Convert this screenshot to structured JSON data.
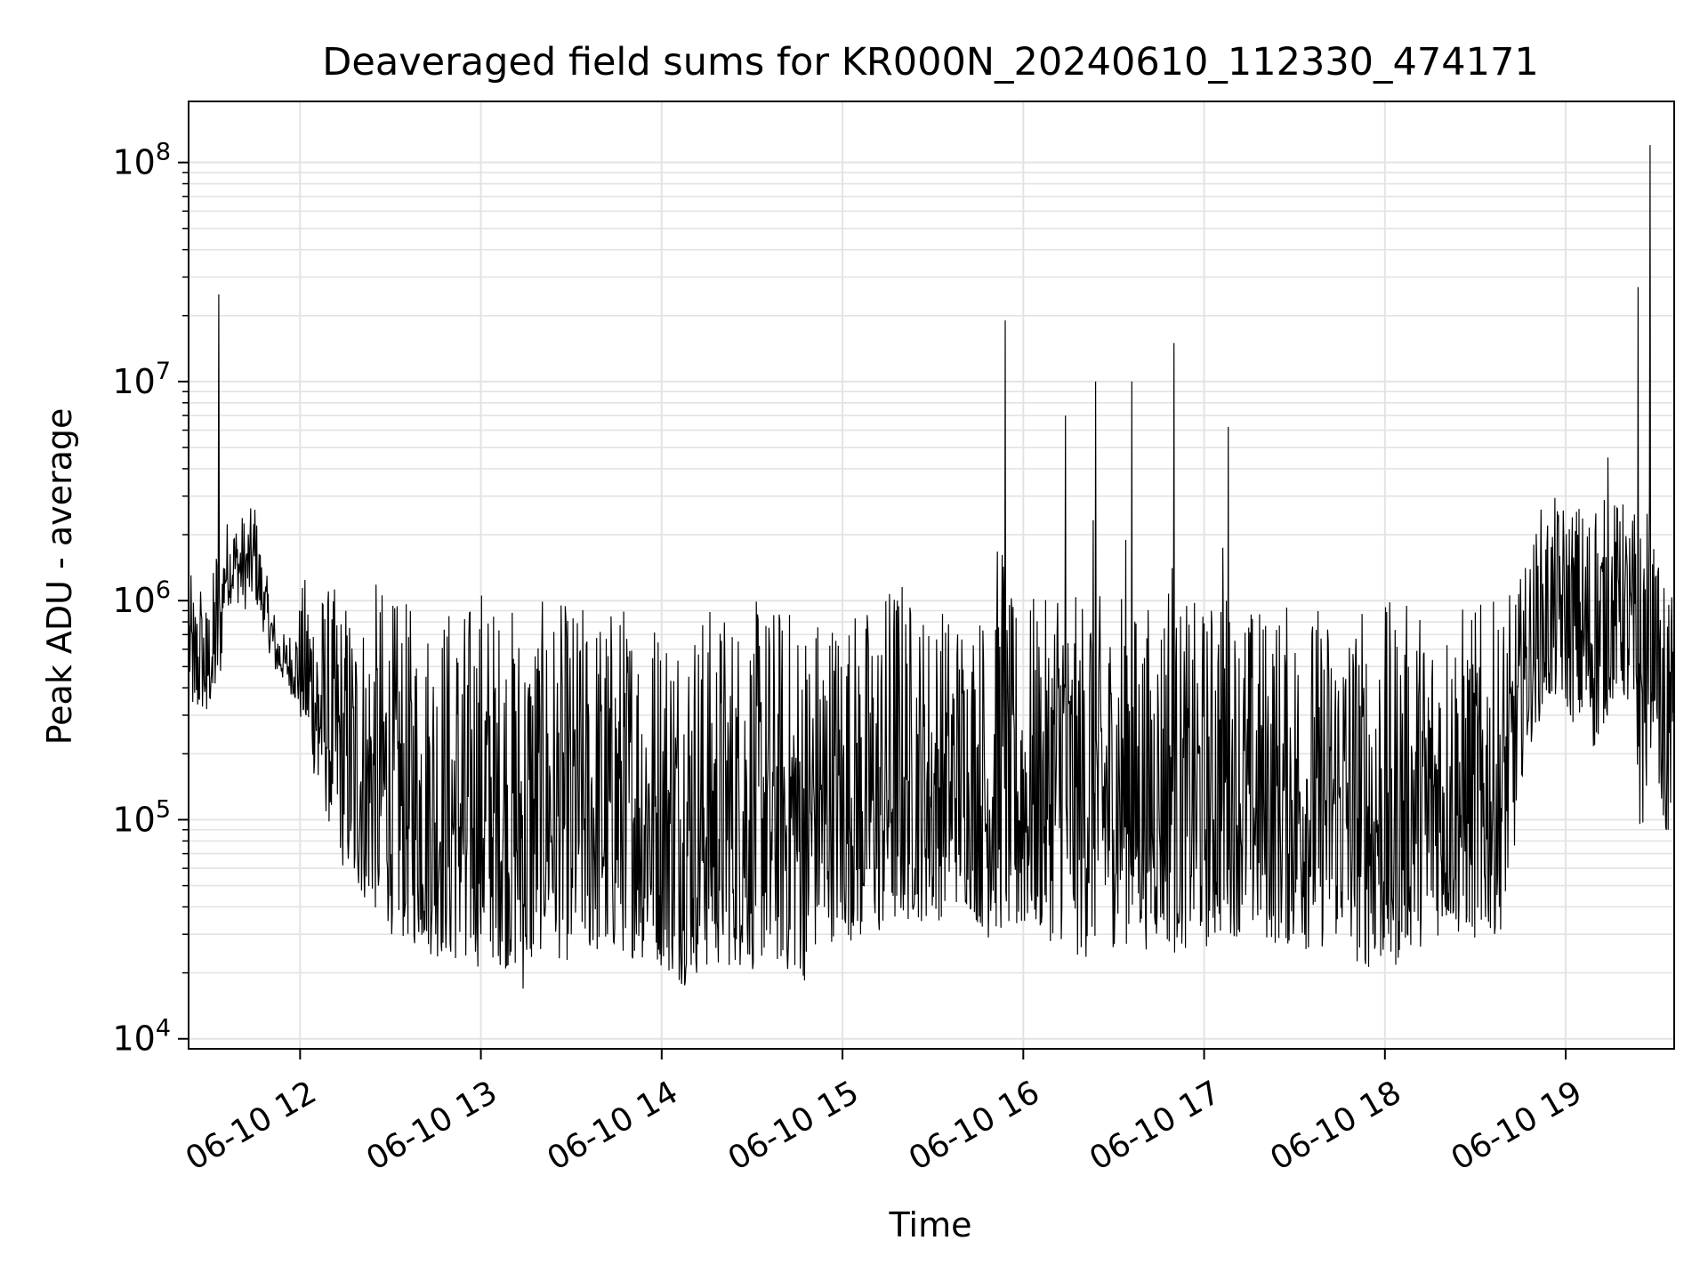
{
  "chart_data": {
    "type": "line",
    "title": "Deaveraged field sums for KR000N_20240610_112330_474171",
    "xlabel": "Time",
    "ylabel": "Peak ADU - average",
    "x_tick_labels": [
      "06-10 12",
      "06-10 13",
      "06-10 14",
      "06-10 15",
      "06-10 16",
      "06-10 17",
      "06-10 18",
      "06-10 19"
    ],
    "x_ticks": [
      "2024-06-10 12:00",
      "2024-06-10 13:00",
      "2024-06-10 14:00",
      "2024-06-10 15:00",
      "2024-06-10 16:00",
      "2024-06-10 17:00",
      "2024-06-10 18:00",
      "2024-06-10 19:00"
    ],
    "xlim": [
      "2024-06-10 11:23",
      "2024-06-10 19:36"
    ],
    "y_scale": "log",
    "ylim": [
      9000,
      190000000
    ],
    "y_tick_labels": [
      {
        "base": "10",
        "exp": "4",
        "value": 10000
      },
      {
        "base": "10",
        "exp": "5",
        "value": 100000
      },
      {
        "base": "10",
        "exp": "6",
        "value": 1000000
      },
      {
        "base": "10",
        "exp": "7",
        "value": 10000000
      },
      {
        "base": "10",
        "exp": "8",
        "value": 100000000
      }
    ],
    "grid": true,
    "line_color": "#000000",
    "grid_color": "#e3e3e3",
    "series": [
      {
        "x": [
          "2024-06-10 11:23",
          "2024-06-10 11:25",
          "2024-06-10 11:27",
          "2024-06-10 11:29",
          "2024-06-10 11:31",
          "2024-06-10 11:33",
          "2024-06-10 11:35",
          "2024-06-10 11:38",
          "2024-06-10 11:42",
          "2024-06-10 11:45",
          "2024-06-10 11:48",
          "2024-06-10 11:52",
          "2024-06-10 11:55",
          "2024-06-10 11:58",
          "2024-06-10 12:02",
          "2024-06-10 12:06",
          "2024-06-10 12:10",
          "2024-06-10 12:14",
          "2024-06-10 12:18",
          "2024-06-10 12:22",
          "2024-06-10 12:26",
          "2024-06-10 12:30",
          "2024-06-10 12:35",
          "2024-06-10 12:40",
          "2024-06-10 12:45",
          "2024-06-10 12:50",
          "2024-06-10 12:55",
          "2024-06-10 13:00",
          "2024-06-10 13:05",
          "2024-06-10 13:10",
          "2024-06-10 13:15",
          "2024-06-10 13:20",
          "2024-06-10 13:25",
          "2024-06-10 13:30",
          "2024-06-10 13:36",
          "2024-06-10 13:42",
          "2024-06-10 13:48",
          "2024-06-10 13:54",
          "2024-06-10 14:00",
          "2024-06-10 14:06",
          "2024-06-10 14:12",
          "2024-06-10 14:18",
          "2024-06-10 14:24",
          "2024-06-10 14:30",
          "2024-06-10 14:36",
          "2024-06-10 14:42",
          "2024-06-10 14:48",
          "2024-06-10 14:54",
          "2024-06-10 15:00",
          "2024-06-10 15:06",
          "2024-06-10 15:12",
          "2024-06-10 15:18",
          "2024-06-10 15:24",
          "2024-06-10 15:30",
          "2024-06-10 15:36",
          "2024-06-10 15:42",
          "2024-06-10 15:48",
          "2024-06-10 15:54",
          "2024-06-10 15:58",
          "2024-06-10 16:02",
          "2024-06-10 16:08",
          "2024-06-10 16:14",
          "2024-06-10 16:19",
          "2024-06-10 16:24",
          "2024-06-10 16:30",
          "2024-06-10 16:36",
          "2024-06-10 16:42",
          "2024-06-10 16:45",
          "2024-06-10 16:50",
          "2024-06-10 16:56",
          "2024-06-10 17:02",
          "2024-06-10 17:08",
          "2024-06-10 17:14",
          "2024-06-10 17:20",
          "2024-06-10 17:26",
          "2024-06-10 17:32",
          "2024-06-10 17:38",
          "2024-06-10 17:44",
          "2024-06-10 17:50",
          "2024-06-10 17:56",
          "2024-06-10 18:02",
          "2024-06-10 18:08",
          "2024-06-10 18:14",
          "2024-06-10 18:20",
          "2024-06-10 18:26",
          "2024-06-10 18:32",
          "2024-06-10 18:38",
          "2024-06-10 18:42",
          "2024-06-10 18:46",
          "2024-06-10 18:52",
          "2024-06-10 18:58",
          "2024-06-10 19:04",
          "2024-06-10 19:10",
          "2024-06-10 19:14",
          "2024-06-10 19:18",
          "2024-06-10 19:22",
          "2024-06-10 19:24",
          "2024-06-10 19:26",
          "2024-06-10 19:28",
          "2024-06-10 19:30",
          "2024-06-10 19:32",
          "2024-06-10 19:34",
          "2024-06-10 19:36"
        ],
        "values": [
          600000,
          380000,
          1100000,
          320000,
          420000,
          25000000,
          1400000,
          1900000,
          1500000,
          2600000,
          1100000,
          550000,
          520000,
          450000,
          300000,
          160000,
          120000,
          90000,
          60000,
          55000,
          50000,
          45000,
          42000,
          35000,
          30000,
          25000,
          24000,
          30000,
          32000,
          25000,
          30000,
          40000,
          35000,
          30000,
          28000,
          30000,
          32000,
          28000,
          27000,
          30000,
          27000,
          26000,
          29000,
          28000,
          30000,
          26000,
          25000,
          40000,
          35000,
          30000,
          35000,
          45000,
          60000,
          55000,
          80000,
          120000,
          60000,
          19000000,
          120000,
          70000,
          100000,
          7000000,
          140000,
          10000000,
          90000,
          10000000,
          80000,
          120000,
          15000000,
          110000,
          80000,
          6200000,
          70000,
          80000,
          90000,
          70000,
          60000,
          50000,
          40000,
          30000,
          25000,
          40000,
          45000,
          40000,
          45000,
          35000,
          40000,
          250000,
          900000,
          1000000,
          1600000,
          2000000,
          2500000,
          4500000,
          2300000,
          1500000,
          27000000,
          1400000,
          120000000,
          1300000,
          200000,
          90000,
          300000
        ],
        "min_envelope": [
          380000,
          260000,
          300000,
          300000,
          320000,
          320000,
          900000,
          1000000,
          900000,
          1000000,
          700000,
          450000,
          420000,
          350000,
          220000,
          130000,
          90000,
          60000,
          45000,
          40000,
          35000,
          30000,
          27000,
          25000,
          23000,
          22000,
          21000,
          21000,
          22000,
          20000,
          15000,
          25000,
          23000,
          22000,
          23000,
          22000,
          24000,
          22000,
          21000,
          17000,
          19000,
          20000,
          21000,
          20000,
          22000,
          19000,
          18000,
          28000,
          27000,
          29000,
          28000,
          30000,
          35000,
          32000,
          40000,
          38000,
          28000,
          30000,
          25000,
          30000,
          28000,
          27000,
          22000,
          24000,
          26000,
          27000,
          25000,
          27000,
          24000,
          26000,
          25000,
          30000,
          28000,
          27000,
          26000,
          25000,
          25000,
          27000,
          22000,
          20000,
          19000,
          25000,
          27000,
          30000,
          28000,
          27000,
          30000,
          50000,
          180000,
          300000,
          350000,
          250000,
          200000,
          300000,
          400000,
          250000,
          90000,
          80000,
          200000,
          350000,
          60000,
          80000,
          110000
        ],
        "max_envelope": [
          1400000,
          1200000,
          1100000,
          1000000,
          1300000,
          25000000,
          2400000,
          2400000,
          2600000,
          2700000,
          1500000,
          850000,
          700000,
          800000,
          1400000,
          1200000,
          1200000,
          1100000,
          1100000,
          1000000,
          1300000,
          1050000,
          1000000,
          950000,
          1000000,
          1050000,
          1000000,
          1350000,
          1000000,
          1000000,
          1000000,
          1000000,
          1000000,
          1000000,
          1000000,
          1000000,
          1050000,
          1000000,
          1000000,
          1000000,
          1000000,
          1000000,
          1000000,
          1000000,
          1050000,
          1000000,
          1000000,
          1000000,
          1000000,
          1000000,
          1000000,
          1600000,
          1000000,
          1000000,
          1000000,
          1000000,
          1000000,
          19000000,
          1100000,
          1100000,
          1000000,
          7000000,
          1100000,
          10000000,
          1000000,
          10000000,
          1000000,
          1000000,
          15000000,
          1000000,
          1000000,
          6200000,
          1000000,
          1000000,
          1000000,
          1000000,
          1000000,
          1000000,
          1000000,
          1000000,
          1000000,
          1000000,
          1000000,
          1000000,
          1000000,
          1000000,
          1000000,
          1100000,
          1400000,
          2800000,
          3000000,
          5000000,
          6000000,
          5000000,
          4000000,
          2700000,
          27000000,
          2800000,
          120000000,
          1500000,
          1400000,
          1200000,
          1100000
        ]
      }
    ]
  }
}
